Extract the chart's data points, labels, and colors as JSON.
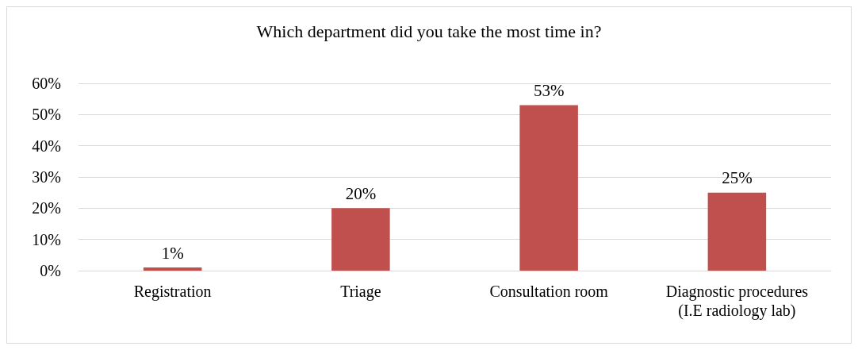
{
  "chart_data": {
    "type": "bar",
    "title": "Which department did you take the most time in?",
    "categories": [
      "Registration",
      "Triage",
      "Consultation room",
      "Diagnostic procedures\n(I.E radiology lab)"
    ],
    "values": [
      1,
      20,
      53,
      25
    ],
    "value_labels": [
      "1%",
      "20%",
      "53%",
      "25%"
    ],
    "color": "#c0504d",
    "ylim": [
      0,
      60
    ],
    "yticks": [
      {
        "value": 0,
        "label": "0%"
      },
      {
        "value": 10,
        "label": "10%"
      },
      {
        "value": 20,
        "label": "20%"
      },
      {
        "value": 30,
        "label": "30%"
      },
      {
        "value": 40,
        "label": "40%"
      },
      {
        "value": 50,
        "label": "50%"
      },
      {
        "value": 60,
        "label": "60%"
      }
    ],
    "grid": "y"
  }
}
